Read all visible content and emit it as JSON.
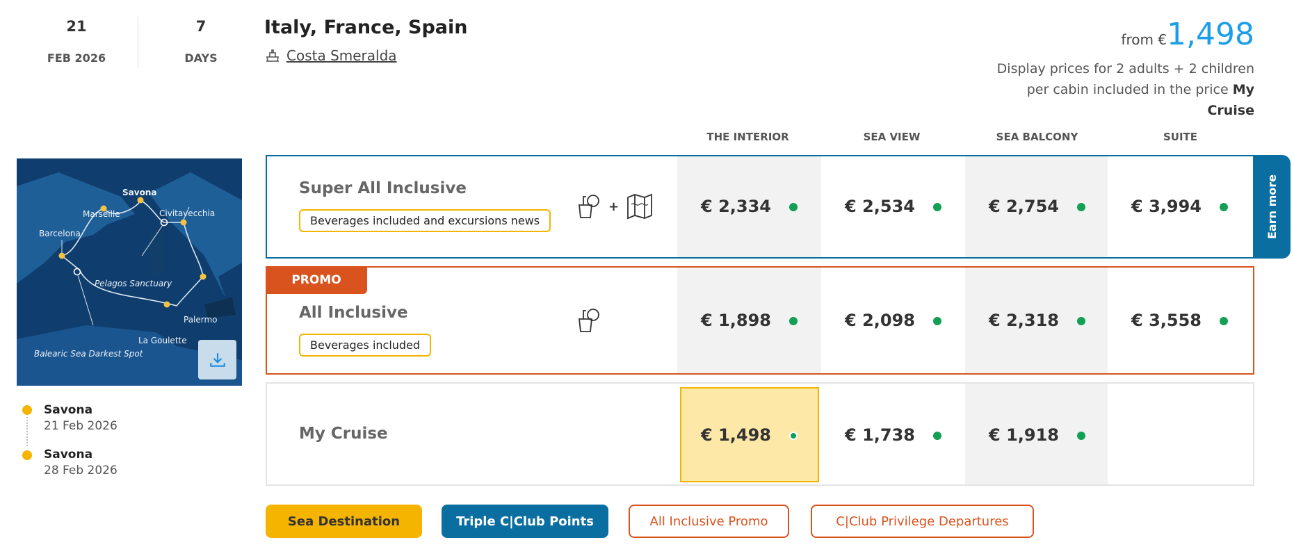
{
  "date": {
    "day": "21",
    "month_year": "FEB 2026"
  },
  "duration": {
    "value": "7",
    "unit": "DAYS"
  },
  "itinerary_title": "Italy, France, Spain",
  "ship": {
    "name": "Costa Smeralda",
    "icon": "ship-icon"
  },
  "price_summary": {
    "from_label": "from €",
    "amount": "1,498",
    "note": "Display prices for 2 adults + 2 children per cabin included in the price",
    "note_bold": "My Cruise"
  },
  "columns": [
    "THE INTERIOR",
    "SEA VIEW",
    "SEA BALCONY",
    "SUITE"
  ],
  "map": {
    "labels": [
      "Savona",
      "Marseille",
      "Civitavecchia",
      "Barcelona",
      "Pelagos Sanctuary",
      "Palermo",
      "La Goulette",
      "Balearic Sea Darkest Spot"
    ],
    "download_icon": "download-icon"
  },
  "ports": [
    {
      "name": "Savona",
      "date": "21 Feb 2026"
    },
    {
      "name": "Savona",
      "date": "28 Feb 2026"
    }
  ],
  "rows": [
    {
      "name": "Super All Inclusive",
      "tag": "Beverages included and excursions news",
      "icons": [
        "drink-icon",
        "plus",
        "map-icon"
      ],
      "plus": "+",
      "prices": [
        "€ 2,334",
        "€ 2,534",
        "€ 2,754",
        "€ 3,994"
      ],
      "side_tab": "Earn more"
    },
    {
      "name": "All Inclusive",
      "promo": "PROMO",
      "tag": "Beverages included",
      "icons": [
        "drink-icon"
      ],
      "prices": [
        "€ 1,898",
        "€ 2,098",
        "€ 2,318",
        "€ 3,558"
      ]
    },
    {
      "name": "My Cruise",
      "prices": [
        "€ 1,498",
        "€ 1,738",
        "€ 1,918"
      ],
      "selected": "THE INTERIOR"
    }
  ],
  "badges": [
    {
      "label": "Sea Destination",
      "color": "#f5b400"
    },
    {
      "label": "Triple C|Club Points",
      "color": "#0a6fa0"
    },
    {
      "label": "All Inclusive Promo",
      "color": "#d9531e"
    },
    {
      "label": "C|Club Privilege Departures",
      "color": "#d9531e"
    }
  ],
  "colors": {
    "accent_blue": "#1a9ee8",
    "row_blue": "#0a6fa0",
    "promo": "#d9531e",
    "available": "#12a055",
    "highlight": "#fde8a8"
  }
}
